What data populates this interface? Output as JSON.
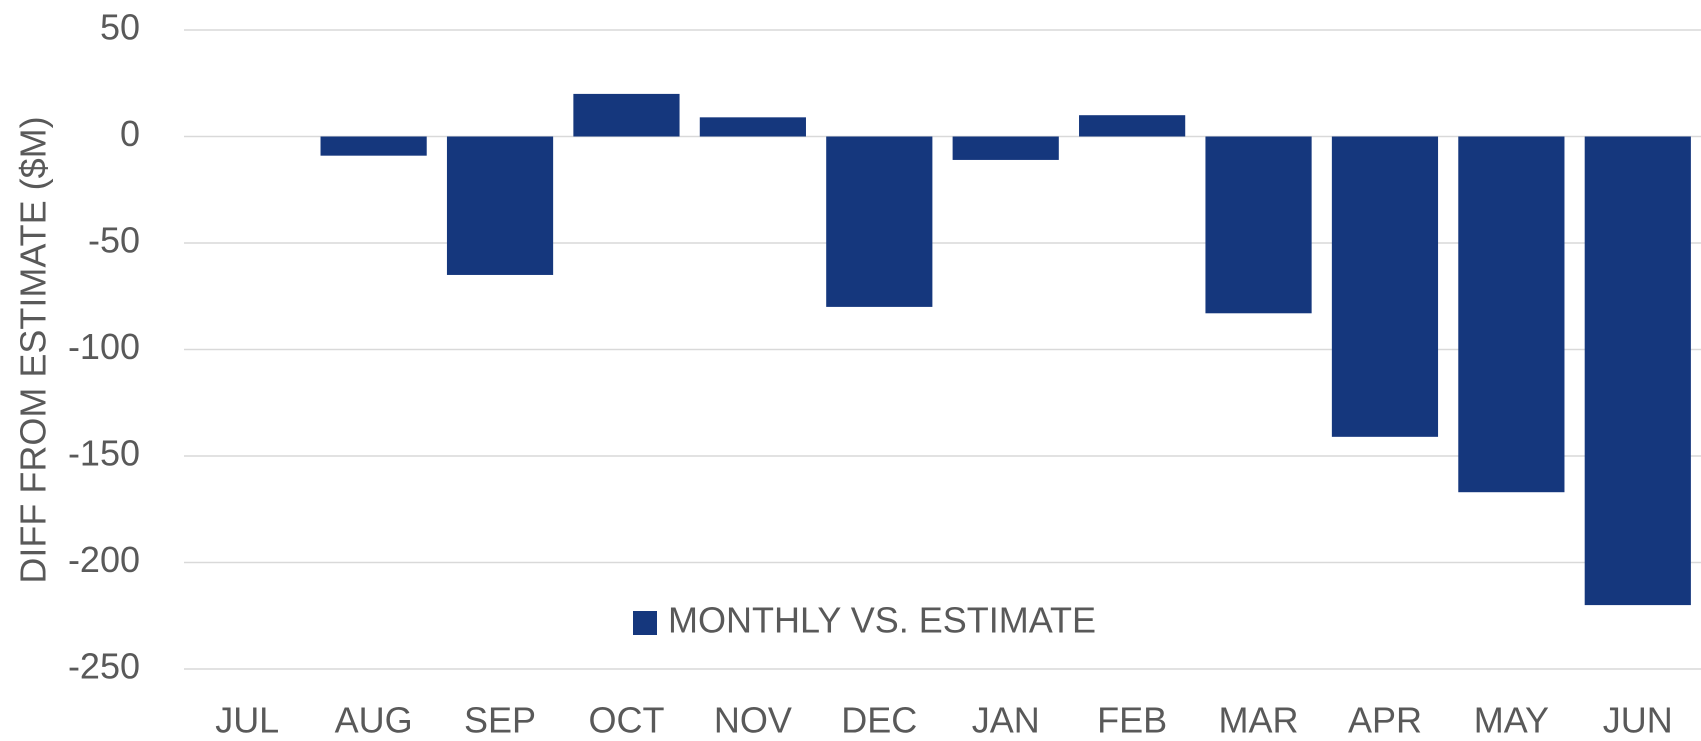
{
  "chart_data": {
    "type": "bar",
    "y_label": "DIFF FROM ESTIMATE ($M)",
    "categories": [
      "JUL",
      "AUG",
      "SEP",
      "OCT",
      "NOV",
      "DEC",
      "JAN",
      "FEB",
      "MAR",
      "APR",
      "MAY",
      "JUN"
    ],
    "series": [
      {
        "name": "MONTHLY VS. ESTIMATE",
        "color": "#15377d",
        "values": [
          0,
          -9,
          -65,
          20,
          9,
          -80,
          -11,
          10,
          -83,
          -141,
          -167,
          -220
        ]
      }
    ],
    "ylim": [
      -250,
      50
    ],
    "yticks": [
      -250,
      -200,
      -150,
      -100,
      -50,
      0,
      50
    ],
    "grid": true
  }
}
